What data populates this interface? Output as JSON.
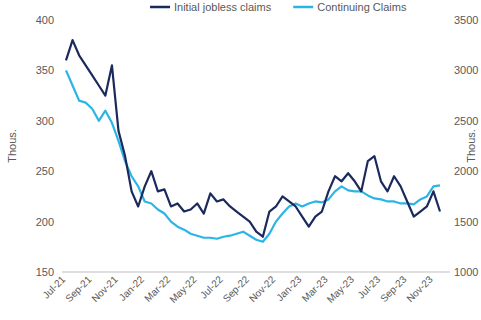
{
  "chart_data": {
    "type": "line",
    "ylabel": "Thous.",
    "y2label": "Thous.",
    "legend": "top",
    "grid": false,
    "categories": [
      "Jul-21",
      null,
      null,
      null,
      "Sep-21",
      null,
      null,
      null,
      "Nov-21",
      null,
      null,
      null,
      "Jan-22",
      null,
      null,
      null,
      "Mar-22",
      null,
      null,
      null,
      "May-22",
      null,
      null,
      null,
      "Jul-22",
      null,
      null,
      null,
      "Sep-22",
      null,
      null,
      null,
      "Nov-22",
      null,
      null,
      null,
      "Jan-23",
      null,
      null,
      null,
      "Mar-23",
      null,
      null,
      null,
      "May-23",
      null,
      null,
      null,
      "Jul-23",
      null,
      null,
      null,
      "Sep-23",
      null,
      null,
      null,
      "Nov-23",
      null
    ],
    "ylim": [
      150,
      400
    ],
    "yticks": [
      150,
      200,
      250,
      300,
      350,
      400
    ],
    "y2lim": [
      1000,
      3500
    ],
    "y2ticks": [
      1000,
      1500,
      2000,
      2500,
      3000,
      3500
    ],
    "series": [
      {
        "name": "Initial jobless claims",
        "color": "#1b2a5c",
        "values": [
          360,
          380,
          365,
          355,
          345,
          335,
          325,
          355,
          290,
          265,
          230,
          215,
          235,
          250,
          230,
          232,
          215,
          218,
          210,
          212,
          218,
          208,
          228,
          220,
          222,
          215,
          210,
          205,
          200,
          190,
          185,
          210,
          215,
          225,
          220,
          215,
          205,
          195,
          205,
          210,
          230,
          245,
          240,
          248,
          240,
          230,
          260,
          265,
          240,
          230,
          245,
          235,
          220,
          205,
          210,
          215,
          230,
          210
        ]
      },
      {
        "name": "Continuing Claims",
        "color": "#2bb5e6",
        "axis": "y2",
        "values": [
          3000,
          2850,
          2700,
          2680,
          2620,
          2500,
          2600,
          2480,
          2300,
          2100,
          1950,
          1850,
          1700,
          1680,
          1620,
          1580,
          1500,
          1450,
          1420,
          1380,
          1360,
          1340,
          1340,
          1330,
          1350,
          1360,
          1380,
          1400,
          1360,
          1320,
          1300,
          1380,
          1500,
          1580,
          1650,
          1680,
          1650,
          1680,
          1700,
          1690,
          1720,
          1800,
          1850,
          1810,
          1800,
          1800,
          1760,
          1730,
          1720,
          1700,
          1700,
          1680,
          1680,
          1670,
          1720,
          1750,
          1850,
          1860
        ]
      }
    ]
  }
}
